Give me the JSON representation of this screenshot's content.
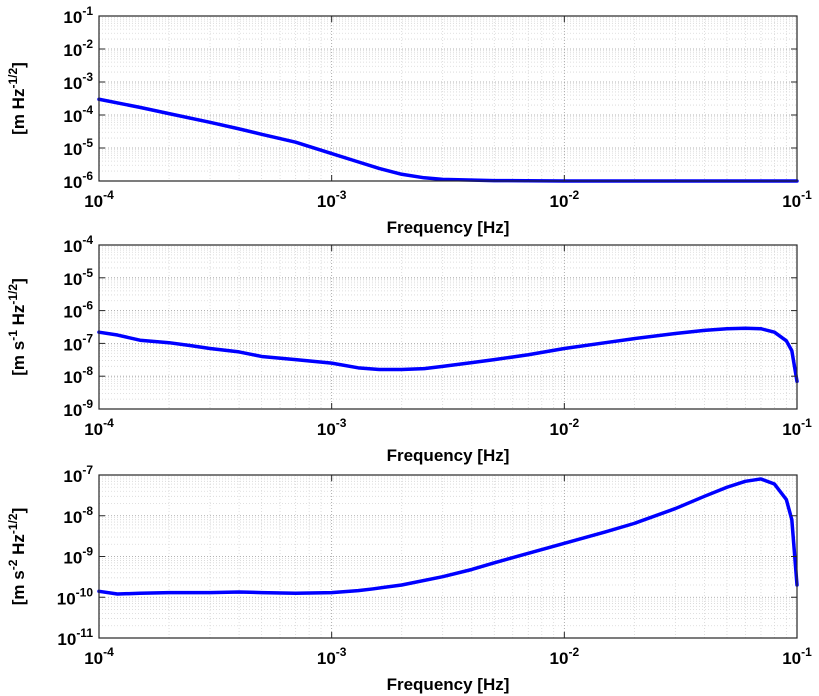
{
  "chart_data": [
    {
      "type": "line",
      "title": "",
      "xlabel": "Frequency  [Hz]",
      "ylabel": {
        "base": "[m Hz",
        "sup": "-1/2",
        "tail": "]"
      },
      "xscale": "log",
      "yscale": "log",
      "xlim": [
        0.0001,
        0.1
      ],
      "ylim": [
        1e-06,
        0.1
      ],
      "grid": true,
      "x_ticks": [
        {
          "value": 0.0001,
          "base": "10",
          "exp": "-4"
        },
        {
          "value": 0.001,
          "base": "10",
          "exp": "-3"
        },
        {
          "value": 0.01,
          "base": "10",
          "exp": "-2"
        },
        {
          "value": 0.1,
          "base": "10",
          "exp": "-1"
        }
      ],
      "y_ticks": [
        {
          "value": 1e-06,
          "base": "10",
          "exp": "-6"
        },
        {
          "value": 1e-05,
          "base": "10",
          "exp": "-5"
        },
        {
          "value": 0.0001,
          "base": "10",
          "exp": "-4"
        },
        {
          "value": 0.001,
          "base": "10",
          "exp": "-3"
        },
        {
          "value": 0.01,
          "base": "10",
          "exp": "-2"
        },
        {
          "value": 0.1,
          "base": "10",
          "exp": "-1"
        }
      ],
      "series": [
        {
          "color": "#0000ff",
          "x": [
            0.0001,
            0.00015,
            0.0002,
            0.0003,
            0.0004,
            0.0005,
            0.0007,
            0.001,
            0.0013,
            0.0016,
            0.002,
            0.0025,
            0.003,
            0.005,
            0.01,
            0.02,
            0.05,
            0.1
          ],
          "y": [
            0.0003,
            0.00017,
            0.00011,
            6e-05,
            3.8e-05,
            2.6e-05,
            1.5e-05,
            6.8e-06,
            3.8e-06,
            2.4e-06,
            1.6e-06,
            1.25e-06,
            1.12e-06,
            1.03e-06,
            1e-06,
            1e-06,
            1e-06,
            1e-06
          ]
        }
      ]
    },
    {
      "type": "line",
      "title": "",
      "xlabel": "Frequency  [Hz]",
      "ylabel": {
        "base": "[m s",
        "sup": "-1",
        "mid": " Hz",
        "sup2": "-1/2",
        "tail": "]"
      },
      "xscale": "log",
      "yscale": "log",
      "xlim": [
        0.0001,
        0.1
      ],
      "ylim": [
        1e-09,
        0.0001
      ],
      "grid": true,
      "x_ticks": [
        {
          "value": 0.0001,
          "base": "10",
          "exp": "-4"
        },
        {
          "value": 0.001,
          "base": "10",
          "exp": "-3"
        },
        {
          "value": 0.01,
          "base": "10",
          "exp": "-2"
        },
        {
          "value": 0.1,
          "base": "10",
          "exp": "-1"
        }
      ],
      "y_ticks": [
        {
          "value": 1e-09,
          "base": "10",
          "exp": "-9"
        },
        {
          "value": 1e-08,
          "base": "10",
          "exp": "-8"
        },
        {
          "value": 1e-07,
          "base": "10",
          "exp": "-7"
        },
        {
          "value": 1e-06,
          "base": "10",
          "exp": "-6"
        },
        {
          "value": 1e-05,
          "base": "10",
          "exp": "-5"
        },
        {
          "value": 0.0001,
          "base": "10",
          "exp": "-4"
        }
      ],
      "series": [
        {
          "color": "#0000ff",
          "x": [
            0.0001,
            0.00012,
            0.00015,
            0.0002,
            0.00025,
            0.0003,
            0.0004,
            0.0005,
            0.0007,
            0.001,
            0.0013,
            0.0016,
            0.002,
            0.0025,
            0.003,
            0.004,
            0.005,
            0.007,
            0.01,
            0.015,
            0.02,
            0.03,
            0.04,
            0.05,
            0.06,
            0.07,
            0.08,
            0.09,
            0.095,
            0.1
          ],
          "y": [
            2.2e-07,
            1.8e-07,
            1.25e-07,
            1.05e-07,
            8.5e-08,
            7e-08,
            5.5e-08,
            4e-08,
            3.2e-08,
            2.5e-08,
            1.8e-08,
            1.6e-08,
            1.6e-08,
            1.7e-08,
            2e-08,
            2.6e-08,
            3.2e-08,
            4.5e-08,
            7e-08,
            1.05e-07,
            1.4e-07,
            2e-07,
            2.5e-07,
            2.8e-07,
            2.9e-07,
            2.8e-07,
            2.2e-07,
            1.2e-07,
            6e-08,
            7e-09
          ]
        }
      ]
    },
    {
      "type": "line",
      "title": "",
      "xlabel": "Frequency  [Hz]",
      "ylabel": {
        "base": "[m s",
        "sup": "-2",
        "mid": " Hz",
        "sup2": "-1/2",
        "tail": "]"
      },
      "xscale": "log",
      "yscale": "log",
      "xlim": [
        0.0001,
        0.1
      ],
      "ylim": [
        1e-11,
        1e-07
      ],
      "grid": true,
      "x_ticks": [
        {
          "value": 0.0001,
          "base": "10",
          "exp": "-4"
        },
        {
          "value": 0.001,
          "base": "10",
          "exp": "-3"
        },
        {
          "value": 0.01,
          "base": "10",
          "exp": "-2"
        },
        {
          "value": 0.1,
          "base": "10",
          "exp": "-1"
        }
      ],
      "y_ticks": [
        {
          "value": 1e-11,
          "base": "10",
          "exp": "-11"
        },
        {
          "value": 1e-10,
          "base": "10",
          "exp": "-10"
        },
        {
          "value": 1e-09,
          "base": "10",
          "exp": "-9"
        },
        {
          "value": 1e-08,
          "base": "10",
          "exp": "-8"
        },
        {
          "value": 1e-07,
          "base": "10",
          "exp": "-7"
        }
      ],
      "series": [
        {
          "color": "#0000ff",
          "x": [
            0.0001,
            0.00012,
            0.00015,
            0.0002,
            0.0003,
            0.0004,
            0.0005,
            0.0007,
            0.001,
            0.0013,
            0.0015,
            0.002,
            0.003,
            0.004,
            0.005,
            0.007,
            0.01,
            0.015,
            0.02,
            0.03,
            0.04,
            0.05,
            0.06,
            0.07,
            0.08,
            0.09,
            0.095,
            0.1
          ],
          "y": [
            1.4e-10,
            1.2e-10,
            1.25e-10,
            1.3e-10,
            1.3e-10,
            1.35e-10,
            1.3e-10,
            1.25e-10,
            1.3e-10,
            1.45e-10,
            1.6e-10,
            2e-10,
            3.2e-10,
            4.8e-10,
            7e-10,
            1.2e-09,
            2.1e-09,
            4e-09,
            6.5e-09,
            1.5e-08,
            3e-08,
            5e-08,
            7e-08,
            8e-08,
            6e-08,
            2.5e-08,
            8e-09,
            2e-10
          ]
        }
      ]
    }
  ]
}
